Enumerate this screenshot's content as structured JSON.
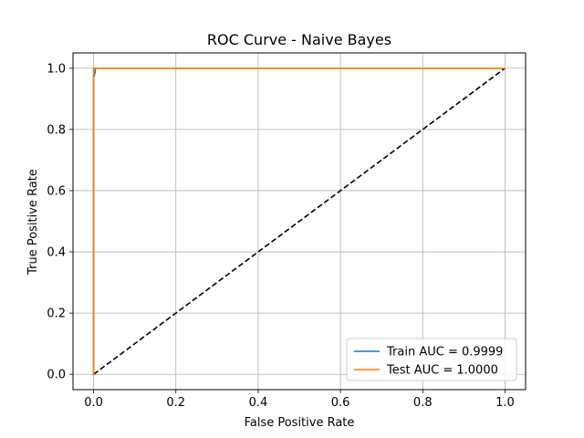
{
  "chart_data": {
    "type": "line",
    "title": "ROC Curve - Naive Bayes",
    "xlabel": "False Positive Rate",
    "ylabel": "True Positive Rate",
    "xlim": [
      -0.05,
      1.05
    ],
    "ylim": [
      -0.05,
      1.05
    ],
    "xticks": [
      0.0,
      0.2,
      0.4,
      0.6,
      0.8,
      1.0
    ],
    "yticks": [
      0.0,
      0.2,
      0.4,
      0.6,
      0.8,
      1.0
    ],
    "xtick_labels": [
      "0.0",
      "0.2",
      "0.4",
      "0.6",
      "0.8",
      "1.0"
    ],
    "ytick_labels": [
      "0.0",
      "0.2",
      "0.4",
      "0.6",
      "0.8",
      "1.0"
    ],
    "grid": true,
    "legend_position": "lower-right",
    "series": [
      {
        "name": "Train AUC = 0.9999",
        "color": "#1f77b4",
        "x": [
          0.0,
          0.0,
          0.002,
          0.002,
          0.004,
          0.004,
          0.006,
          1.0
        ],
        "y": [
          0.0,
          0.975,
          0.975,
          0.985,
          0.985,
          1.0,
          1.0,
          1.0
        ]
      },
      {
        "name": "Test AUC = 1.0000",
        "color": "#ff7f0e",
        "x": [
          0.0,
          0.0,
          1.0
        ],
        "y": [
          0.0,
          1.0,
          1.0
        ]
      }
    ],
    "reference_line": {
      "x": [
        0.0,
        1.0
      ],
      "y": [
        0.0,
        1.0
      ],
      "color": "#000000",
      "style": "dashed"
    }
  }
}
